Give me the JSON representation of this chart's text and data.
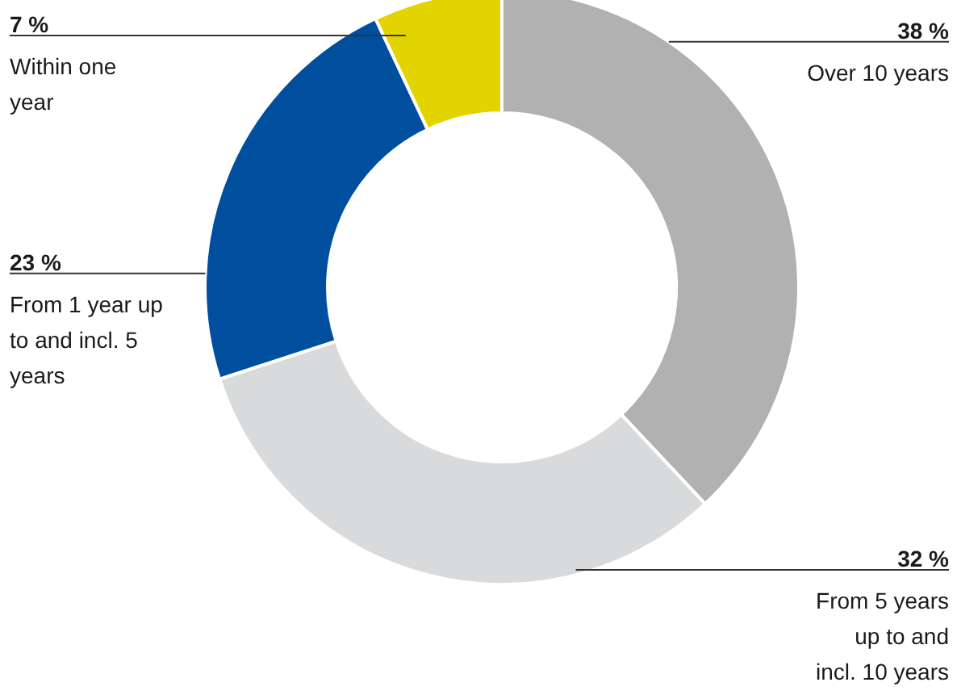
{
  "chart_data": {
    "type": "donut",
    "categories": [
      "Over 10 years",
      "From 5 years up to and incl. 10 years",
      "From 1 year up to and incl. 5 years",
      "Within one year"
    ],
    "values": [
      38,
      32,
      23,
      7
    ],
    "colors": [
      "#b1b1b1",
      "#d9dadb",
      "#004f9f",
      "#e2d400"
    ],
    "value_labels": [
      "38 %",
      "32 %",
      "23  %",
      "7 %"
    ]
  }
}
